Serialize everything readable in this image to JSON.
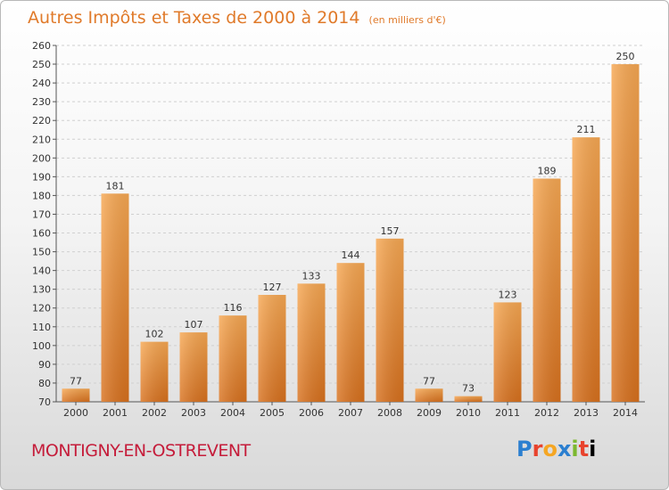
{
  "header": {
    "title": "Autres Impôts et Taxes de 2000 à 2014",
    "subtitle": "(en milliers d'€)"
  },
  "footer": {
    "commune": "MONTIGNY-EN-OSTREVENT",
    "logo_letters": [
      "P",
      "r",
      "o",
      "x",
      "i",
      "t",
      "i"
    ]
  },
  "colors": {
    "bar_light": "#f7a853",
    "bar_dark": "#d8711e",
    "title": "#e07a2a",
    "commune": "#c51c3a"
  },
  "chart_data": {
    "type": "bar",
    "categories": [
      "2000",
      "2001",
      "2002",
      "2003",
      "2004",
      "2005",
      "2006",
      "2007",
      "2008",
      "2009",
      "2010",
      "2011",
      "2012",
      "2013",
      "2014"
    ],
    "values": [
      77,
      181,
      102,
      107,
      116,
      127,
      133,
      144,
      157,
      77,
      73,
      123,
      189,
      211,
      250
    ],
    "data_labels": [
      "77",
      "181",
      "102",
      "107",
      "116",
      "127",
      "133",
      "144",
      "157",
      "77",
      "73",
      "123",
      "189",
      "211",
      "250"
    ],
    "ylim": [
      70,
      260
    ],
    "yticks": [
      70,
      80,
      90,
      100,
      110,
      120,
      130,
      140,
      150,
      160,
      170,
      180,
      190,
      200,
      210,
      220,
      230,
      240,
      250,
      260
    ],
    "grid": true,
    "legend": "none"
  }
}
